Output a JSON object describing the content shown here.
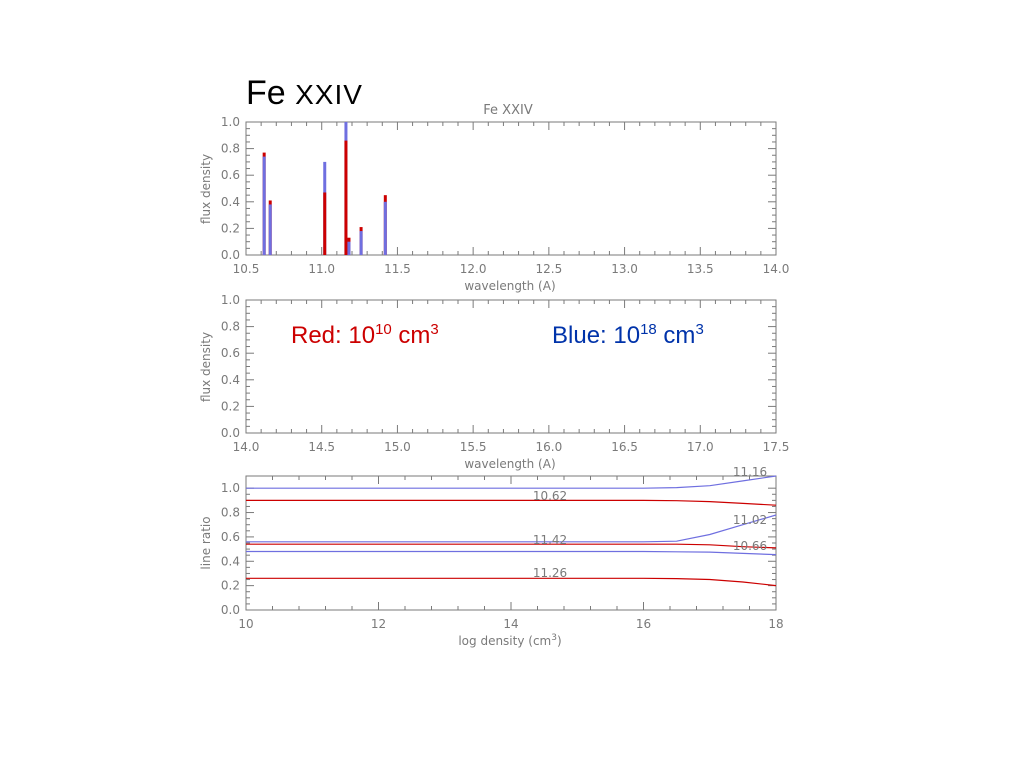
{
  "slide_title": {
    "main": "Fe ",
    "roman": "XXIV"
  },
  "colors": {
    "red": "#cc0000",
    "blue": "#6f6fe0",
    "axis": "#7a7a7a",
    "legend_blue": "#0033aa"
  },
  "chart_data": [
    {
      "type": "bar",
      "title": "Fe XXIV",
      "xlabel": "wavelength (A)",
      "ylabel": "flux density",
      "xlim": [
        10.5,
        14.0
      ],
      "ylim": [
        0.0,
        1.0
      ],
      "xticks": [
        "10.5",
        "11.0",
        "11.5",
        "12.0",
        "12.5",
        "13.0",
        "13.5",
        "14.0"
      ],
      "yticks": [
        "0.0",
        "0.2",
        "0.4",
        "0.6",
        "0.8",
        "1.0"
      ],
      "series": [
        {
          "color": "blue",
          "x": [
            10.62,
            10.66,
            11.02,
            11.16,
            11.18,
            11.26,
            11.42
          ],
          "values": [
            0.74,
            0.38,
            0.7,
            1.0,
            0.1,
            0.18,
            0.4
          ]
        },
        {
          "color": "red",
          "x": [
            10.62,
            10.66,
            11.02,
            11.16,
            11.18,
            11.26,
            11.42
          ],
          "values": [
            0.77,
            0.41,
            0.47,
            0.86,
            0.13,
            0.21,
            0.45
          ]
        }
      ]
    },
    {
      "type": "bar",
      "xlabel": "wavelength (A)",
      "ylabel": "flux density",
      "xlim": [
        14.0,
        17.5
      ],
      "ylim": [
        0.0,
        1.0
      ],
      "xticks": [
        "14.0",
        "14.5",
        "15.0",
        "15.5",
        "16.0",
        "16.5",
        "17.0",
        "17.5"
      ],
      "yticks": [
        "0.0",
        "0.2",
        "0.4",
        "0.6",
        "0.8",
        "1.0"
      ],
      "series": [],
      "legend": {
        "red": {
          "prefix": "Red: 10",
          "exp": "10",
          "unit": " cm",
          "unit_exp": "3"
        },
        "blue": {
          "prefix": "Blue: 10",
          "exp": "18",
          "unit": " cm",
          "unit_exp": "3"
        }
      }
    },
    {
      "type": "line",
      "xlabel": "log density (cm",
      "xlabel_sup": "3",
      "xlabel_end": ")",
      "ylabel": "line ratio",
      "xlim": [
        10,
        18
      ],
      "ylim": [
        0.0,
        1.1
      ],
      "xticks": [
        "10",
        "12",
        "14",
        "16",
        "18"
      ],
      "yticks": [
        "0.0",
        "0.2",
        "0.4",
        "0.6",
        "0.8",
        "1.0"
      ],
      "series": [
        {
          "color": "blue",
          "label": "11.16",
          "x": [
            10,
            16,
            16.5,
            17,
            17.5,
            18
          ],
          "values": [
            1.0,
            1.0,
            1.005,
            1.02,
            1.06,
            1.12
          ]
        },
        {
          "color": "red",
          "label": "10.62",
          "x": [
            10,
            16,
            16.5,
            17,
            17.5,
            18
          ],
          "values": [
            0.9,
            0.9,
            0.897,
            0.89,
            0.875,
            0.86
          ]
        },
        {
          "color": "blue",
          "label": "11.02",
          "x": [
            10,
            16,
            16.5,
            17,
            17.5,
            18
          ],
          "values": [
            0.56,
            0.56,
            0.565,
            0.62,
            0.7,
            0.78
          ]
        },
        {
          "color": "red",
          "label": "11.42",
          "x": [
            10,
            16,
            16.5,
            17,
            17.5,
            18
          ],
          "values": [
            0.54,
            0.54,
            0.54,
            0.535,
            0.52,
            0.51
          ]
        },
        {
          "color": "blue",
          "label": "10.66",
          "x": [
            10,
            16,
            16.5,
            17,
            17.5,
            18
          ],
          "values": [
            0.48,
            0.48,
            0.478,
            0.475,
            0.465,
            0.455
          ]
        },
        {
          "color": "red",
          "label": "11.26",
          "x": [
            10,
            16,
            16.5,
            17,
            17.5,
            18
          ],
          "values": [
            0.26,
            0.26,
            0.258,
            0.25,
            0.23,
            0.2
          ]
        }
      ]
    }
  ]
}
